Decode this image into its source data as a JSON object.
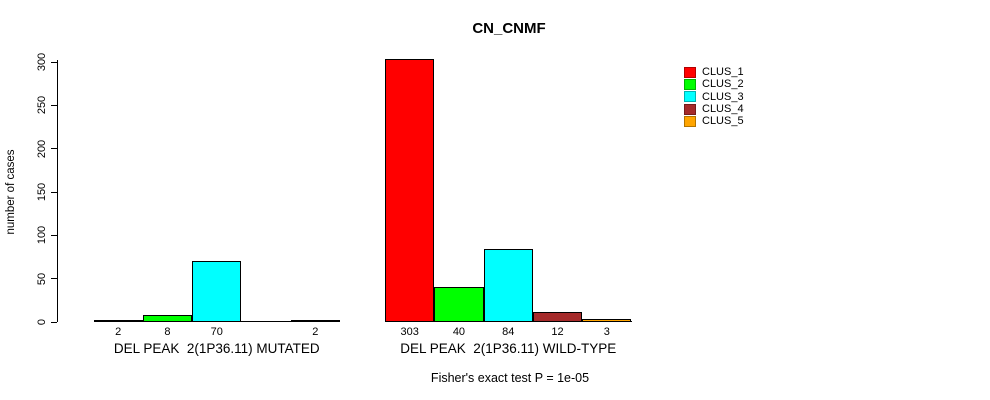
{
  "chart_data": {
    "type": "bar",
    "title": "CN_CNMF",
    "ylabel": "number of cases",
    "ylim": [
      0,
      300
    ],
    "y_ticks": [
      0,
      50,
      100,
      150,
      200,
      250,
      300
    ],
    "grid": false,
    "legend_position": "right",
    "categories": [
      "DEL PEAK  2(1P36.11) MUTATED",
      "DEL PEAK  2(1P36.11) WILD-TYPE"
    ],
    "series": [
      {
        "name": "CLUS_1",
        "color": "#ff0000",
        "values": [
          2,
          303
        ]
      },
      {
        "name": "CLUS_2",
        "color": "#00ff00",
        "values": [
          8,
          40
        ]
      },
      {
        "name": "CLUS_3",
        "color": "#00ffff",
        "values": [
          70,
          84
        ]
      },
      {
        "name": "CLUS_4",
        "color": "#a52a2a",
        "values": [
          0,
          12
        ]
      },
      {
        "name": "CLUS_5",
        "color": "#ffa500",
        "values": [
          2,
          3
        ]
      }
    ],
    "bar_value_labels": [
      [
        "2",
        "8",
        "70",
        "",
        "2"
      ],
      [
        "303",
        "40",
        "84",
        "12",
        "3"
      ]
    ],
    "caption": "Fisher's exact test P = 1e-05"
  }
}
